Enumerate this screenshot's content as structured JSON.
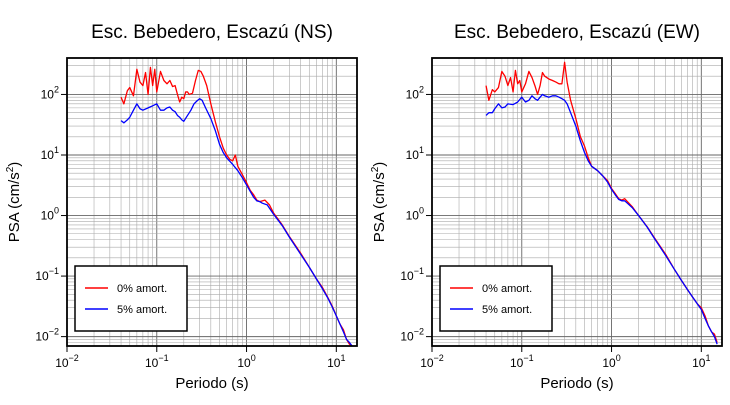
{
  "figure": {
    "charts": [
      {
        "title": "Esc. Bebedero, Escazú (NS)",
        "ylabel": "PSA (cm/s²)",
        "ylabel_main": "PSA (cm/s",
        "ylabel_sup": "2",
        "ylabel_end": ")",
        "xlabel": "Periodo (s)"
      },
      {
        "title": "Esc. Bebedero, Escazú (EW)",
        "ylabel": "PSA (cm/s²)",
        "ylabel_main": "PSA (cm/s",
        "ylabel_sup": "2",
        "ylabel_end": ")",
        "xlabel": "Periodo (s)"
      }
    ],
    "colors": {
      "series_0pct": "#ff0000",
      "series_5pct": "#0000ff"
    }
  },
  "chart_data": [
    {
      "type": "line",
      "title": "Esc. Bebedero, Escazú (NS)",
      "xlabel": "Periodo (s)",
      "ylabel": "PSA (cm/s²)",
      "xscale": "log",
      "yscale": "log",
      "xlim": [
        0.01,
        17
      ],
      "ylim": [
        0.007,
        400
      ],
      "grid": true,
      "legend_position": "bottom-left",
      "x_ticks": [
        {
          "base": "10",
          "exp": "−2"
        },
        {
          "base": "10",
          "exp": "−1"
        },
        {
          "base": "10",
          "exp": "0"
        },
        {
          "base": "10",
          "exp": "1"
        }
      ],
      "y_ticks": [
        {
          "base": "10",
          "exp": "−2"
        },
        {
          "base": "10",
          "exp": "−1"
        },
        {
          "base": "10",
          "exp": "0"
        },
        {
          "base": "10",
          "exp": "1"
        },
        {
          "base": "10",
          "exp": "2"
        }
      ],
      "series": [
        {
          "name": "0% amort.",
          "color": "#ff0000",
          "points": [
            [
              0.04,
              90
            ],
            [
              0.043,
              70
            ],
            [
              0.047,
              115
            ],
            [
              0.05,
              130
            ],
            [
              0.055,
              95
            ],
            [
              0.06,
              260
            ],
            [
              0.065,
              160
            ],
            [
              0.07,
              140
            ],
            [
              0.075,
              230
            ],
            [
              0.08,
              100
            ],
            [
              0.085,
              280
            ],
            [
              0.09,
              140
            ],
            [
              0.095,
              260
            ],
            [
              0.1,
              110
            ],
            [
              0.11,
              240
            ],
            [
              0.12,
              170
            ],
            [
              0.13,
              150
            ],
            [
              0.14,
              170
            ],
            [
              0.15,
              135
            ],
            [
              0.16,
              140
            ],
            [
              0.17,
              100
            ],
            [
              0.18,
              75
            ],
            [
              0.19,
              90
            ],
            [
              0.2,
              85
            ],
            [
              0.21,
              110
            ],
            [
              0.22,
              110
            ],
            [
              0.23,
              100
            ],
            [
              0.25,
              105
            ],
            [
              0.27,
              170
            ],
            [
              0.29,
              250
            ],
            [
              0.31,
              240
            ],
            [
              0.33,
              200
            ],
            [
              0.36,
              140
            ],
            [
              0.4,
              70
            ],
            [
              0.45,
              35
            ],
            [
              0.5,
              20
            ],
            [
              0.55,
              13
            ],
            [
              0.6,
              10
            ],
            [
              0.65,
              8.5
            ],
            [
              0.7,
              8
            ],
            [
              0.75,
              10
            ],
            [
              0.8,
              6.5
            ],
            [
              0.85,
              5.5
            ],
            [
              0.9,
              4.7
            ],
            [
              1.0,
              3.5
            ],
            [
              1.1,
              2.6
            ],
            [
              1.2,
              2.2
            ],
            [
              1.3,
              1.8
            ],
            [
              1.4,
              1.7
            ],
            [
              1.5,
              1.75
            ],
            [
              1.6,
              1.8
            ],
            [
              1.8,
              1.5
            ],
            [
              2.0,
              1.1
            ],
            [
              2.5,
              0.7
            ],
            [
              3.0,
              0.45
            ],
            [
              4.0,
              0.24
            ],
            [
              5.0,
              0.14
            ],
            [
              6.0,
              0.09
            ],
            [
              7.0,
              0.065
            ],
            [
              8.0,
              0.045
            ],
            [
              9.0,
              0.032
            ],
            [
              10.0,
              0.022
            ],
            [
              11.0,
              0.016
            ],
            [
              12.0,
              0.013
            ],
            [
              13.0,
              0.009
            ],
            [
              14.0,
              0.0075
            ],
            [
              15.0,
              0.007
            ]
          ]
        },
        {
          "name": "5% amort.",
          "color": "#0000ff",
          "points": [
            [
              0.04,
              37
            ],
            [
              0.043,
              34
            ],
            [
              0.047,
              38
            ],
            [
              0.05,
              42
            ],
            [
              0.055,
              55
            ],
            [
              0.06,
              70
            ],
            [
              0.065,
              58
            ],
            [
              0.07,
              55
            ],
            [
              0.08,
              60
            ],
            [
              0.09,
              65
            ],
            [
              0.1,
              70
            ],
            [
              0.11,
              55
            ],
            [
              0.12,
              55
            ],
            [
              0.13,
              60
            ],
            [
              0.14,
              62
            ],
            [
              0.15,
              55
            ],
            [
              0.16,
              52
            ],
            [
              0.17,
              45
            ],
            [
              0.18,
              42
            ],
            [
              0.19,
              38
            ],
            [
              0.2,
              36
            ],
            [
              0.22,
              45
            ],
            [
              0.24,
              55
            ],
            [
              0.26,
              70
            ],
            [
              0.28,
              78
            ],
            [
              0.3,
              85
            ],
            [
              0.32,
              80
            ],
            [
              0.35,
              60
            ],
            [
              0.4,
              40
            ],
            [
              0.45,
              25
            ],
            [
              0.5,
              15
            ],
            [
              0.55,
              11
            ],
            [
              0.6,
              9
            ],
            [
              0.7,
              7
            ],
            [
              0.8,
              5.5
            ],
            [
              0.9,
              4.2
            ],
            [
              1.0,
              3.2
            ],
            [
              1.1,
              2.5
            ],
            [
              1.2,
              2.0
            ],
            [
              1.3,
              1.75
            ],
            [
              1.4,
              1.7
            ],
            [
              1.5,
              1.6
            ],
            [
              1.7,
              1.5
            ],
            [
              2.0,
              1.05
            ],
            [
              2.5,
              0.68
            ],
            [
              3.0,
              0.44
            ],
            [
              4.0,
              0.23
            ],
            [
              5.0,
              0.14
            ],
            [
              6.0,
              0.09
            ],
            [
              7.0,
              0.062
            ],
            [
              8.0,
              0.044
            ],
            [
              9.0,
              0.031
            ],
            [
              10.0,
              0.022
            ],
            [
              11.0,
              0.016
            ],
            [
              12.0,
              0.012
            ],
            [
              13.0,
              0.009
            ],
            [
              14.0,
              0.008
            ],
            [
              15.0,
              0.007
            ]
          ]
        }
      ]
    },
    {
      "type": "line",
      "title": "Esc. Bebedero, Escazú (EW)",
      "xlabel": "Periodo (s)",
      "ylabel": "PSA (cm/s²)",
      "xscale": "log",
      "yscale": "log",
      "xlim": [
        0.01,
        17
      ],
      "ylim": [
        0.007,
        400
      ],
      "grid": true,
      "legend_position": "bottom-left",
      "x_ticks": [
        {
          "base": "10",
          "exp": "−2"
        },
        {
          "base": "10",
          "exp": "−1"
        },
        {
          "base": "10",
          "exp": "0"
        },
        {
          "base": "10",
          "exp": "1"
        }
      ],
      "y_ticks": [
        {
          "base": "10",
          "exp": "−2"
        },
        {
          "base": "10",
          "exp": "−1"
        },
        {
          "base": "10",
          "exp": "0"
        },
        {
          "base": "10",
          "exp": "1"
        },
        {
          "base": "10",
          "exp": "2"
        }
      ],
      "series": [
        {
          "name": "0% amort.",
          "color": "#ff0000",
          "points": [
            [
              0.04,
              140
            ],
            [
              0.043,
              80
            ],
            [
              0.047,
              120
            ],
            [
              0.05,
              110
            ],
            [
              0.055,
              130
            ],
            [
              0.06,
              240
            ],
            [
              0.065,
              200
            ],
            [
              0.07,
              140
            ],
            [
              0.075,
              190
            ],
            [
              0.08,
              110
            ],
            [
              0.085,
              250
            ],
            [
              0.09,
              150
            ],
            [
              0.095,
              170
            ],
            [
              0.1,
              110
            ],
            [
              0.11,
              150
            ],
            [
              0.12,
              240
            ],
            [
              0.13,
              190
            ],
            [
              0.14,
              140
            ],
            [
              0.15,
              100
            ],
            [
              0.16,
              140
            ],
            [
              0.17,
              230
            ],
            [
              0.18,
              200
            ],
            [
              0.19,
              190
            ],
            [
              0.2,
              180
            ],
            [
              0.22,
              170
            ],
            [
              0.24,
              160
            ],
            [
              0.26,
              150
            ],
            [
              0.28,
              150
            ],
            [
              0.3,
              340
            ],
            [
              0.32,
              160
            ],
            [
              0.35,
              80
            ],
            [
              0.4,
              40
            ],
            [
              0.45,
              20
            ],
            [
              0.5,
              14
            ],
            [
              0.55,
              9
            ],
            [
              0.6,
              6.5
            ],
            [
              0.7,
              5.5
            ],
            [
              0.8,
              4.5
            ],
            [
              0.9,
              3.8
            ],
            [
              1.0,
              2.8
            ],
            [
              1.1,
              2.3
            ],
            [
              1.2,
              1.9
            ],
            [
              1.3,
              1.8
            ],
            [
              1.4,
              1.9
            ],
            [
              1.5,
              1.7
            ],
            [
              1.7,
              1.4
            ],
            [
              2.0,
              1.0
            ],
            [
              2.5,
              0.65
            ],
            [
              3.0,
              0.43
            ],
            [
              4.0,
              0.23
            ],
            [
              5.0,
              0.13
            ],
            [
              6.0,
              0.085
            ],
            [
              7.0,
              0.06
            ],
            [
              8.0,
              0.045
            ],
            [
              9.0,
              0.035
            ],
            [
              10.0,
              0.03
            ],
            [
              11.0,
              0.022
            ],
            [
              12.0,
              0.015
            ],
            [
              13.0,
              0.012
            ],
            [
              14.0,
              0.011
            ],
            [
              15.0,
              0.008
            ]
          ]
        },
        {
          "name": "5% amort.",
          "color": "#0000ff",
          "points": [
            [
              0.04,
              45
            ],
            [
              0.043,
              50
            ],
            [
              0.047,
              50
            ],
            [
              0.05,
              58
            ],
            [
              0.055,
              70
            ],
            [
              0.06,
              60
            ],
            [
              0.065,
              62
            ],
            [
              0.07,
              70
            ],
            [
              0.08,
              68
            ],
            [
              0.09,
              75
            ],
            [
              0.1,
              90
            ],
            [
              0.11,
              75
            ],
            [
              0.12,
              80
            ],
            [
              0.13,
              95
            ],
            [
              0.14,
              85
            ],
            [
              0.15,
              80
            ],
            [
              0.16,
              90
            ],
            [
              0.17,
              100
            ],
            [
              0.18,
              95
            ],
            [
              0.2,
              90
            ],
            [
              0.22,
              95
            ],
            [
              0.24,
              95
            ],
            [
              0.26,
              90
            ],
            [
              0.28,
              85
            ],
            [
              0.3,
              80
            ],
            [
              0.32,
              70
            ],
            [
              0.35,
              50
            ],
            [
              0.4,
              30
            ],
            [
              0.45,
              17
            ],
            [
              0.5,
              11
            ],
            [
              0.55,
              8
            ],
            [
              0.6,
              6.5
            ],
            [
              0.7,
              5.5
            ],
            [
              0.8,
              4.5
            ],
            [
              0.9,
              3.6
            ],
            [
              1.0,
              2.7
            ],
            [
              1.1,
              2.2
            ],
            [
              1.2,
              1.85
            ],
            [
              1.3,
              1.75
            ],
            [
              1.4,
              1.75
            ],
            [
              1.5,
              1.6
            ],
            [
              1.7,
              1.35
            ],
            [
              2.0,
              1.0
            ],
            [
              2.5,
              0.64
            ],
            [
              3.0,
              0.42
            ],
            [
              4.0,
              0.22
            ],
            [
              5.0,
              0.13
            ],
            [
              6.0,
              0.085
            ],
            [
              7.0,
              0.06
            ],
            [
              8.0,
              0.045
            ],
            [
              9.0,
              0.035
            ],
            [
              10.0,
              0.028
            ],
            [
              11.0,
              0.02
            ],
            [
              12.0,
              0.015
            ],
            [
              13.0,
              0.012
            ],
            [
              14.0,
              0.01
            ],
            [
              15.0,
              0.0075
            ]
          ]
        }
      ]
    }
  ]
}
